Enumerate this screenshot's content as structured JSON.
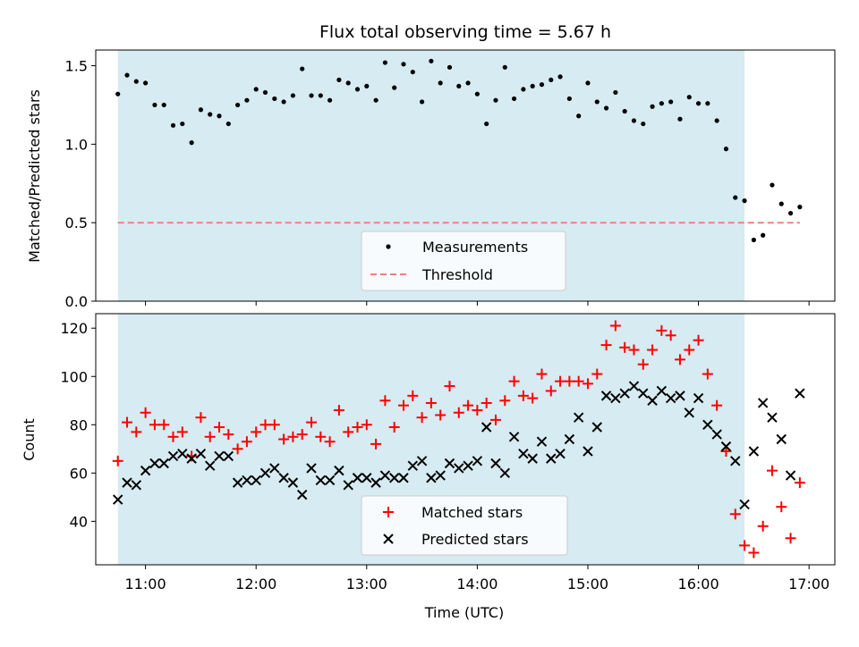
{
  "chart_data": [
    {
      "type": "scatter",
      "title": "Flux total observing time = 5.67 h",
      "xlabel": "",
      "ylabel": "Matched/Predicted stars",
      "xlim": [
        "10:33",
        "17:14"
      ],
      "ylim": [
        0,
        1.6
      ],
      "yticks": [
        0.0,
        0.5,
        1.0,
        1.5
      ],
      "ytick_labels": [
        "0.0",
        "0.5",
        "1.0",
        "1.5"
      ],
      "shaded_span": [
        "10:45",
        "16:25"
      ],
      "shade_color": "#add8e6",
      "threshold": 0.5,
      "legend_position": "lower center",
      "series": [
        {
          "name": "Measurements",
          "marker": "dot",
          "color": "#000000",
          "x": [
            "10:45",
            "10:50",
            "10:55",
            "11:00",
            "11:05",
            "11:10",
            "11:15",
            "11:20",
            "11:25",
            "11:30",
            "11:35",
            "11:40",
            "11:45",
            "11:50",
            "11:55",
            "12:00",
            "12:05",
            "12:10",
            "12:15",
            "12:20",
            "12:25",
            "12:30",
            "12:35",
            "12:40",
            "12:45",
            "12:50",
            "12:55",
            "13:00",
            "13:05",
            "13:10",
            "13:15",
            "13:20",
            "13:25",
            "13:30",
            "13:35",
            "13:40",
            "13:45",
            "13:50",
            "13:55",
            "14:00",
            "14:05",
            "14:10",
            "14:15",
            "14:20",
            "14:25",
            "14:30",
            "14:35",
            "14:40",
            "14:45",
            "14:50",
            "14:55",
            "15:00",
            "15:05",
            "15:10",
            "15:15",
            "15:20",
            "15:25",
            "15:30",
            "15:35",
            "15:40",
            "15:45",
            "15:50",
            "15:55",
            "16:00",
            "16:05",
            "16:10",
            "16:15",
            "16:20",
            "16:25",
            "16:30",
            "16:35",
            "16:40",
            "16:45",
            "16:50",
            "16:55"
          ],
          "y": [
            1.32,
            1.44,
            1.4,
            1.39,
            1.25,
            1.25,
            1.12,
            1.13,
            1.01,
            1.22,
            1.19,
            1.18,
            1.13,
            1.25,
            1.28,
            1.35,
            1.33,
            1.29,
            1.27,
            1.31,
            1.48,
            1.31,
            1.31,
            1.28,
            1.41,
            1.39,
            1.35,
            1.37,
            1.28,
            1.52,
            1.36,
            1.51,
            1.46,
            1.27,
            1.53,
            1.39,
            1.49,
            1.37,
            1.39,
            1.32,
            1.13,
            1.28,
            1.49,
            1.29,
            1.35,
            1.37,
            1.38,
            1.41,
            1.43,
            1.29,
            1.18,
            1.39,
            1.27,
            1.23,
            1.33,
            1.21,
            1.15,
            1.13,
            1.24,
            1.26,
            1.27,
            1.16,
            1.3,
            1.26,
            1.26,
            1.15,
            0.97,
            0.66,
            0.64,
            0.39,
            0.42,
            0.74,
            0.62,
            0.56,
            0.6
          ]
        },
        {
          "name": "Threshold",
          "marker": "dashed-line",
          "color": "#f08080",
          "x": [
            "10:45",
            "16:55"
          ],
          "y": [
            0.5,
            0.5
          ]
        }
      ]
    },
    {
      "type": "scatter",
      "title": "",
      "xlabel": "Time (UTC)",
      "ylabel": "Count",
      "xlim": [
        "10:33",
        "17:14"
      ],
      "ylim": [
        22,
        126
      ],
      "yticks": [
        40,
        60,
        80,
        100,
        120
      ],
      "ytick_labels": [
        "40",
        "60",
        "80",
        "100",
        "120"
      ],
      "xticks": [
        "11:00",
        "12:00",
        "13:00",
        "14:00",
        "15:00",
        "16:00",
        "17:00"
      ],
      "xtick_labels": [
        "11:00",
        "12:00",
        "13:00",
        "14:00",
        "15:00",
        "16:00",
        "17:00"
      ],
      "shaded_span": [
        "10:45",
        "16:25"
      ],
      "shade_color": "#add8e6",
      "legend_position": "lower center",
      "series": [
        {
          "name": "Matched stars",
          "marker": "plus",
          "color": "#ff0000",
          "x": [
            "10:45",
            "10:50",
            "10:55",
            "11:00",
            "11:05",
            "11:10",
            "11:15",
            "11:20",
            "11:25",
            "11:30",
            "11:35",
            "11:40",
            "11:45",
            "11:50",
            "11:55",
            "12:00",
            "12:05",
            "12:10",
            "12:15",
            "12:20",
            "12:25",
            "12:30",
            "12:35",
            "12:40",
            "12:45",
            "12:50",
            "12:55",
            "13:00",
            "13:05",
            "13:10",
            "13:15",
            "13:20",
            "13:25",
            "13:30",
            "13:35",
            "13:40",
            "13:45",
            "13:50",
            "13:55",
            "14:00",
            "14:05",
            "14:10",
            "14:15",
            "14:20",
            "14:25",
            "14:30",
            "14:35",
            "14:40",
            "14:45",
            "14:50",
            "14:55",
            "15:00",
            "15:05",
            "15:10",
            "15:15",
            "15:20",
            "15:25",
            "15:30",
            "15:35",
            "15:40",
            "15:45",
            "15:50",
            "15:55",
            "16:00",
            "16:05",
            "16:10",
            "16:15",
            "16:20",
            "16:25",
            "16:30",
            "16:35",
            "16:40",
            "16:45",
            "16:50",
            "16:55"
          ],
          "y": [
            65,
            81,
            77,
            85,
            80,
            80,
            75,
            77,
            67,
            83,
            75,
            79,
            76,
            70,
            73,
            77,
            80,
            80,
            74,
            75,
            76,
            81,
            75,
            73,
            86,
            77,
            79,
            80,
            72,
            90,
            79,
            88,
            92,
            83,
            89,
            84,
            96,
            85,
            88,
            86,
            89,
            82,
            90,
            98,
            92,
            91,
            101,
            94,
            98,
            98,
            98,
            97,
            101,
            113,
            121,
            112,
            111,
            105,
            111,
            119,
            117,
            107,
            111,
            115,
            101,
            88,
            69,
            43,
            30,
            27,
            38,
            61,
            46,
            33,
            56
          ]
        },
        {
          "name": "Predicted stars",
          "marker": "x",
          "color": "#000000",
          "x": [
            "10:45",
            "10:50",
            "10:55",
            "11:00",
            "11:05",
            "11:10",
            "11:15",
            "11:20",
            "11:25",
            "11:30",
            "11:35",
            "11:40",
            "11:45",
            "11:50",
            "11:55",
            "12:00",
            "12:05",
            "12:10",
            "12:15",
            "12:20",
            "12:25",
            "12:30",
            "12:35",
            "12:40",
            "12:45",
            "12:50",
            "12:55",
            "13:00",
            "13:05",
            "13:10",
            "13:15",
            "13:20",
            "13:25",
            "13:30",
            "13:35",
            "13:40",
            "13:45",
            "13:50",
            "13:55",
            "14:00",
            "14:05",
            "14:10",
            "14:15",
            "14:20",
            "14:25",
            "14:30",
            "14:35",
            "14:40",
            "14:45",
            "14:50",
            "14:55",
            "15:00",
            "15:05",
            "15:10",
            "15:15",
            "15:20",
            "15:25",
            "15:30",
            "15:35",
            "15:40",
            "15:45",
            "15:50",
            "15:55",
            "16:00",
            "16:05",
            "16:10",
            "16:15",
            "16:20",
            "16:25",
            "16:30",
            "16:35",
            "16:40",
            "16:45",
            "16:50",
            "16:55"
          ],
          "y": [
            49,
            56,
            55,
            61,
            64,
            64,
            67,
            68,
            66,
            68,
            63,
            67,
            67,
            56,
            57,
            57,
            60,
            62,
            58,
            56,
            51,
            62,
            57,
            57,
            61,
            55,
            58,
            58,
            56,
            59,
            58,
            58,
            63,
            65,
            58,
            59,
            64,
            62,
            63,
            65,
            79,
            64,
            60,
            75,
            68,
            66,
            73,
            66,
            68,
            74,
            83,
            69,
            79,
            92,
            91,
            93,
            96,
            93,
            90,
            94,
            91,
            92,
            85,
            91,
            80,
            76,
            71,
            65,
            47,
            69,
            89,
            83,
            74,
            59,
            93
          ]
        }
      ]
    }
  ]
}
